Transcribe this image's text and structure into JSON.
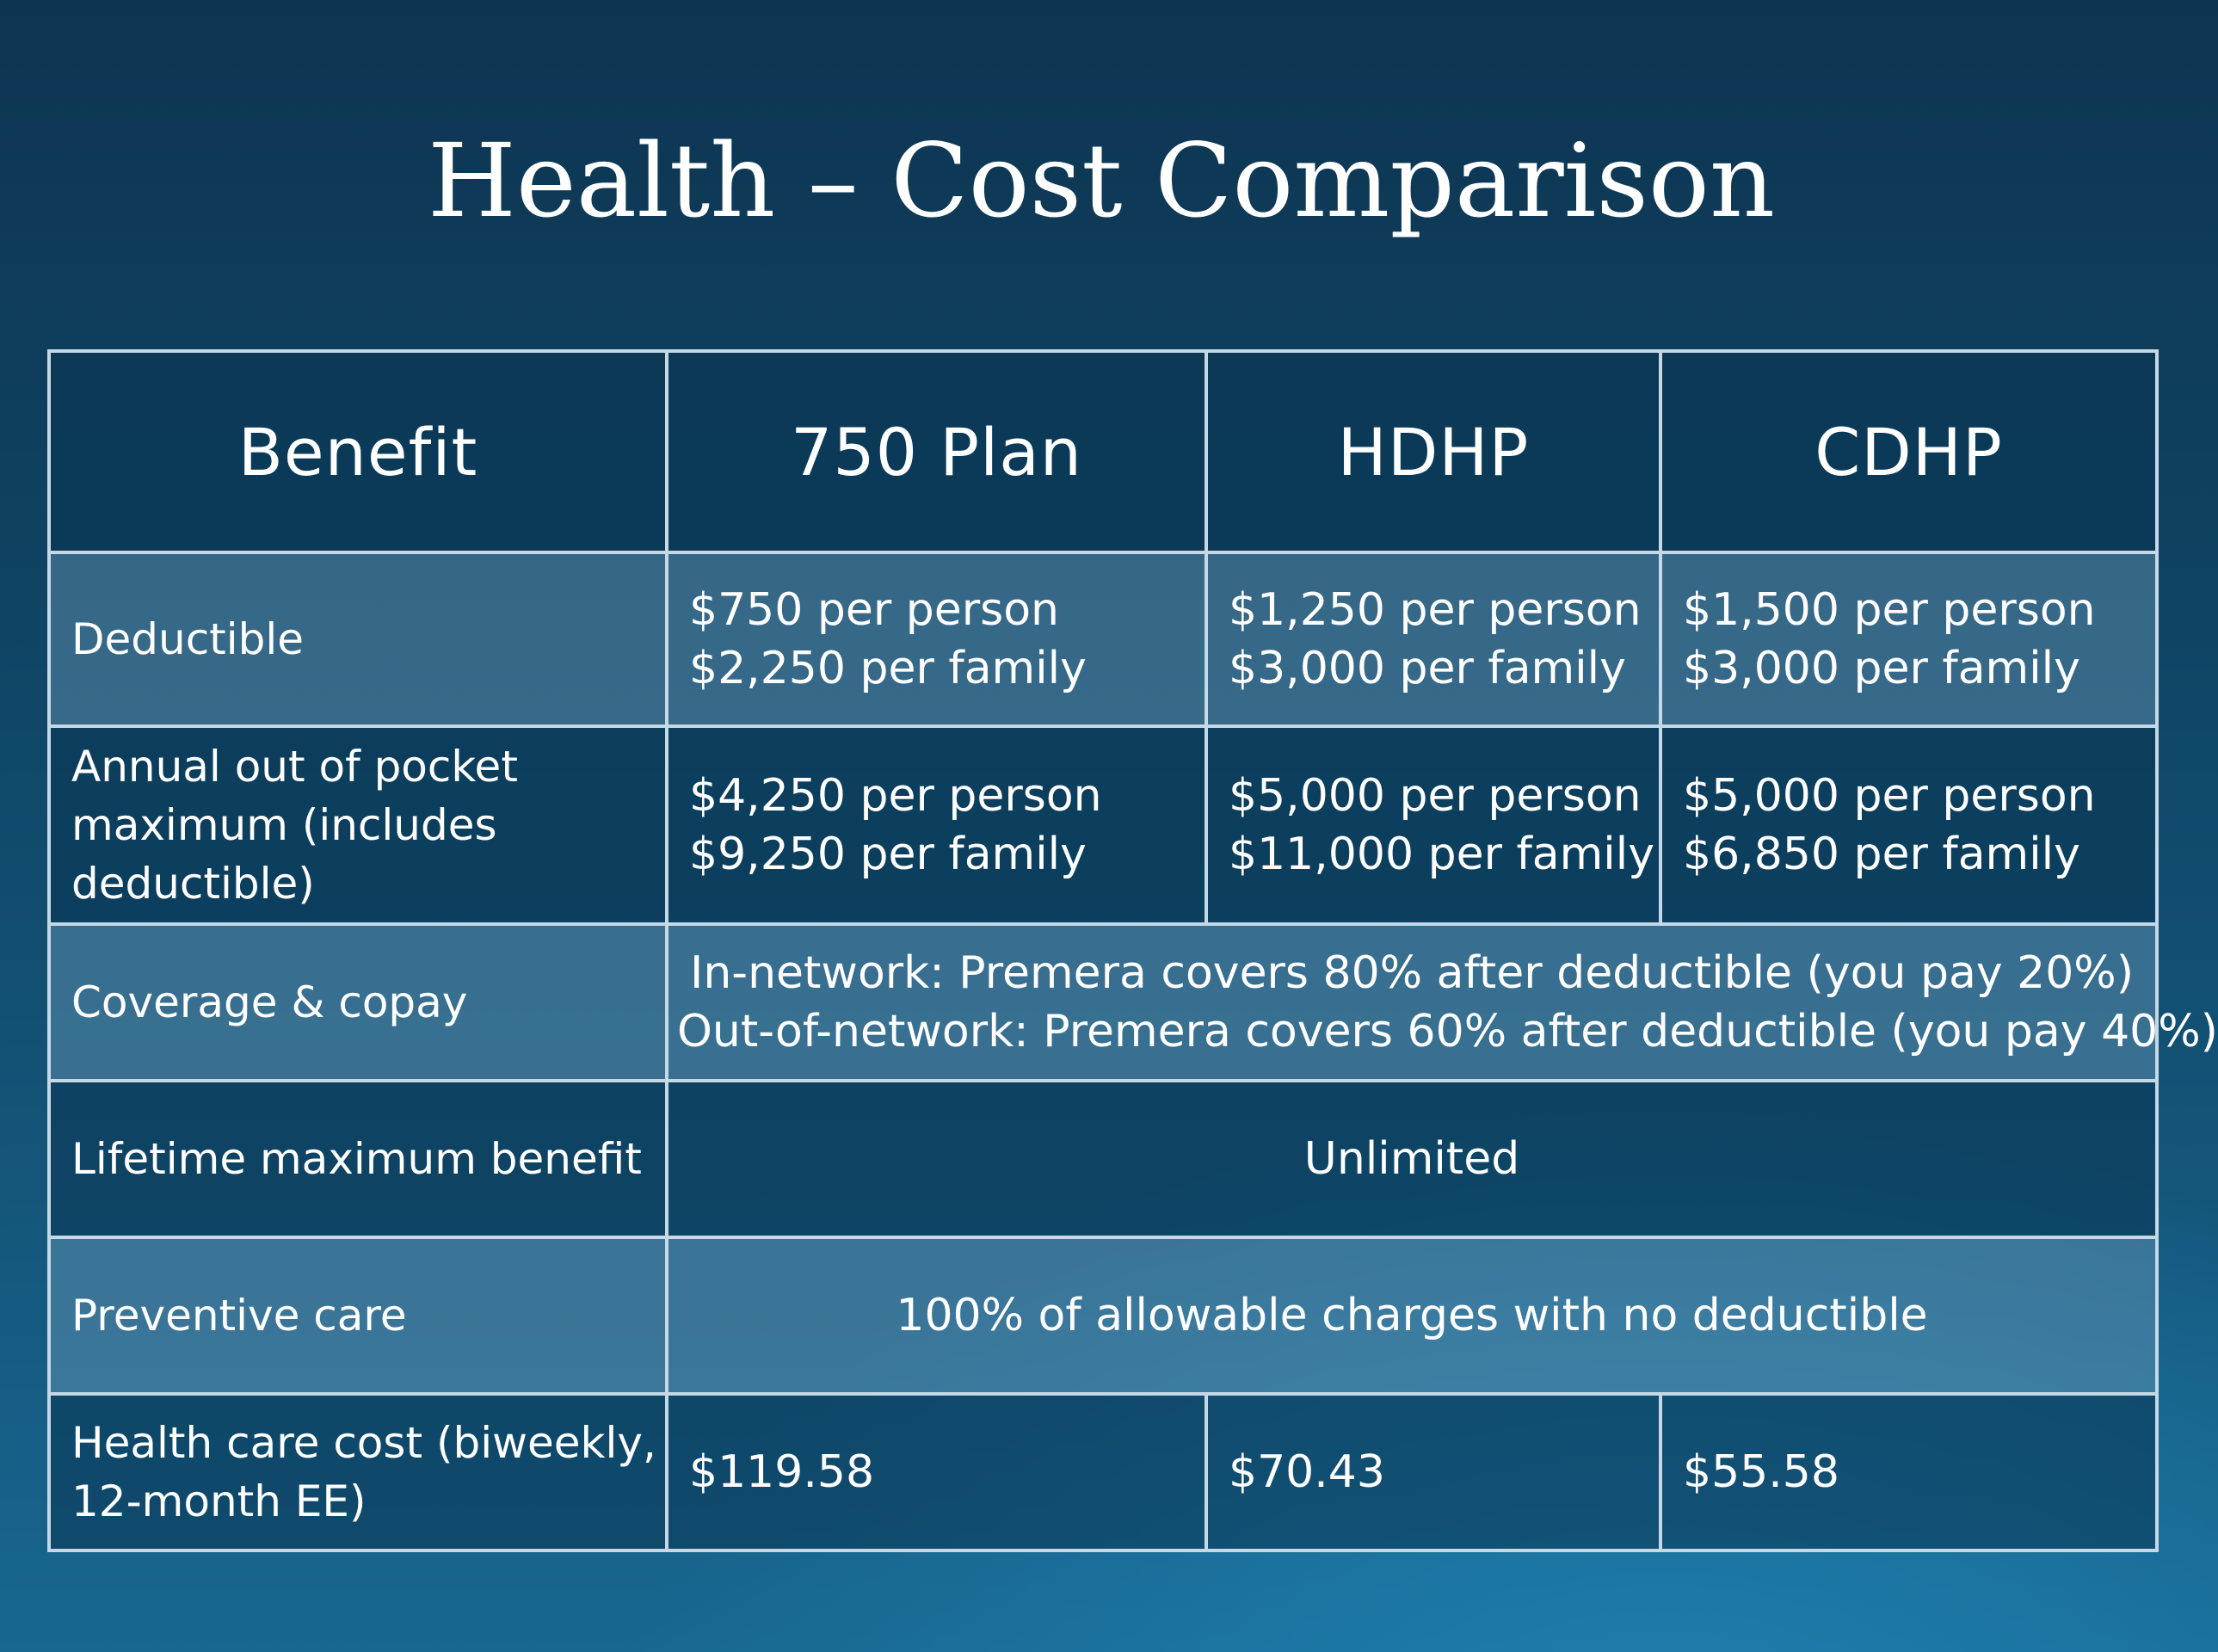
{
  "title": "Health – Cost Comparison",
  "table": {
    "headers": [
      "Benefit",
      "750 Plan",
      "HDHP",
      "CDHP"
    ],
    "rows": {
      "deductible": {
        "label": "Deductible",
        "plan750": [
          "$750 per person",
          "$2,250 per family"
        ],
        "hdhp": [
          "$1,250 per person",
          "$3,000 per family"
        ],
        "cdhp": [
          "$1,500 per person",
          "$3,000 per family"
        ]
      },
      "oop": {
        "label": [
          "Annual out of pocket",
          "maximum (includes",
          "deductible)"
        ],
        "plan750": [
          "$4,250 per person",
          "$9,250 per family"
        ],
        "hdhp": [
          "$5,000 per person",
          "$11,000 per family"
        ],
        "cdhp": [
          "$5,000 per person",
          "$6,850 per family"
        ]
      },
      "coverage": {
        "label": "Coverage & copay",
        "all": [
          "In-network: Premera covers 80% after deductible (you pay 20%)",
          "Out-of-network: Premera covers 60% after deductible (you pay 40%)"
        ]
      },
      "lifetime": {
        "label": "Lifetime maximum benefit",
        "all": "Unlimited"
      },
      "preventive": {
        "label": "Preventive care",
        "all": "100% of allowable charges with no deductible"
      },
      "cost": {
        "label": [
          "Health care cost (biweekly,",
          "12-month EE)"
        ],
        "plan750": "$119.58",
        "hdhp": "$70.43",
        "cdhp": "$55.58"
      }
    }
  }
}
